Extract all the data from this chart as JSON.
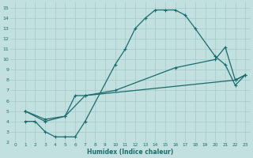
{
  "xlabel": "Humidex (Indice chaleur)",
  "bg_color": "#c2e0e0",
  "grid_color": "#a8cccc",
  "line_color": "#1a6b6b",
  "xlim": [
    -0.5,
    23.5
  ],
  "ylim": [
    2,
    15.5
  ],
  "xticks": [
    0,
    1,
    2,
    3,
    4,
    5,
    6,
    7,
    8,
    9,
    10,
    11,
    12,
    13,
    14,
    15,
    16,
    17,
    18,
    19,
    20,
    21,
    22,
    23
  ],
  "yticks": [
    2,
    3,
    4,
    5,
    6,
    7,
    8,
    9,
    10,
    11,
    12,
    13,
    14,
    15
  ],
  "line1_x": [
    1,
    2,
    3,
    4,
    5,
    6,
    7,
    10,
    11,
    12,
    13,
    14,
    15,
    16,
    17,
    18,
    20,
    21,
    22,
    23
  ],
  "line1_y": [
    4.0,
    4.0,
    3.0,
    2.5,
    2.5,
    2.5,
    4.0,
    9.5,
    11.0,
    13.0,
    14.0,
    14.8,
    14.8,
    14.8,
    14.3,
    13.0,
    10.3,
    9.5,
    7.5,
    8.5
  ],
  "line2_x": [
    1,
    3,
    5,
    6,
    7,
    22,
    23
  ],
  "line2_y": [
    5.0,
    4.0,
    4.5,
    6.5,
    6.5,
    8.0,
    8.5
  ],
  "line3_x": [
    1,
    3,
    5,
    7,
    10,
    16,
    20,
    21,
    22,
    23
  ],
  "line3_y": [
    5.0,
    4.2,
    4.5,
    6.5,
    7.0,
    9.2,
    10.0,
    11.2,
    8.0,
    8.5
  ]
}
